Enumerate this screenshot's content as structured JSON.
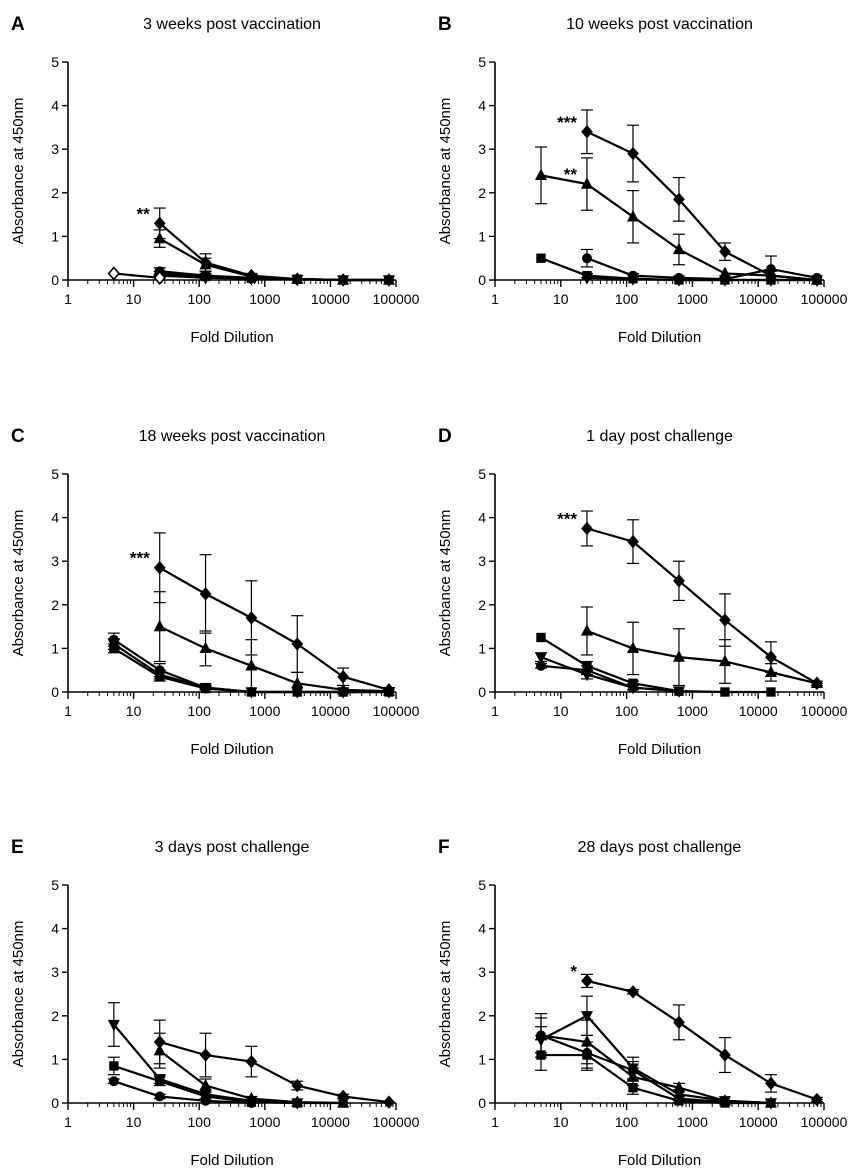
{
  "chart_data": [
    {
      "type": "line",
      "panel": "A",
      "title": "3 weeks post vaccination",
      "xlabel": "Fold Dilution",
      "ylabel": "Absorbance at 450nm",
      "x_scale": "log",
      "xlim": [
        1,
        100000
      ],
      "ylim": [
        0,
        5
      ],
      "x_ticks": [
        "1",
        "10",
        "100",
        "1000",
        "10000",
        "100000"
      ],
      "y_ticks": [
        "0",
        "1",
        "2",
        "3",
        "4",
        "5"
      ],
      "grid": false,
      "series": [
        {
          "marker": "diamond",
          "x": [
            25,
            125,
            625,
            3125,
            15625,
            78125
          ],
          "y": [
            1.3,
            0.4,
            0.1,
            0.02,
            0.0,
            0.0
          ],
          "err": [
            0.35,
            0.2,
            0.05,
            0,
            0,
            0
          ]
        },
        {
          "marker": "triangle-up",
          "x": [
            25,
            125,
            625,
            3125,
            15625,
            78125
          ],
          "y": [
            0.95,
            0.35,
            0.08,
            0.02,
            0.0,
            0.0
          ],
          "err": [
            0.2,
            0.15,
            0.05,
            0,
            0,
            0
          ]
        },
        {
          "marker": "circle",
          "x": [
            25,
            125,
            625,
            3125,
            15625,
            78125
          ],
          "y": [
            0.2,
            0.1,
            0.05,
            0.02,
            0.0,
            0.0
          ],
          "err": [
            0.08,
            0.05,
            0,
            0,
            0,
            0
          ]
        },
        {
          "marker": "square",
          "x": [
            25,
            125,
            625,
            3125,
            15625,
            78125
          ],
          "y": [
            0.15,
            0.08,
            0.04,
            0.02,
            0.0,
            0.0
          ],
          "err": [
            0.05,
            0.03,
            0,
            0,
            0,
            0
          ]
        },
        {
          "marker": "triangle-down",
          "x": [
            25,
            125,
            625,
            3125,
            15625,
            78125
          ],
          "y": [
            0.1,
            0.05,
            0.03,
            0.01,
            0.0,
            0.0
          ],
          "err": [
            0.04,
            0.02,
            0,
            0,
            0,
            0
          ]
        },
        {
          "marker": "diamond-open",
          "x": [
            5,
            25
          ],
          "y": [
            0.15,
            0.05
          ],
          "err": [
            0,
            0
          ]
        }
      ],
      "annotations": [
        {
          "text": "**",
          "x": 25,
          "y": 1.3
        }
      ]
    },
    {
      "type": "line",
      "panel": "B",
      "title": "10 weeks post vaccination",
      "xlabel": "Fold Dilution",
      "ylabel": "Absorbance at 450nm",
      "x_scale": "log",
      "xlim": [
        1,
        100000
      ],
      "ylim": [
        0,
        5
      ],
      "x_ticks": [
        "1",
        "10",
        "100",
        "1000",
        "10000",
        "100000"
      ],
      "y_ticks": [
        "0",
        "1",
        "2",
        "3",
        "4",
        "5"
      ],
      "grid": false,
      "series": [
        {
          "marker": "diamond",
          "x": [
            25,
            125,
            625,
            3125,
            15625,
            78125
          ],
          "y": [
            3.4,
            2.9,
            1.85,
            0.65,
            0.1,
            0.0
          ],
          "err": [
            0.5,
            0.65,
            0.5,
            0.2,
            0.1,
            0
          ]
        },
        {
          "marker": "triangle-up",
          "x": [
            5,
            25,
            125,
            625,
            3125,
            15625,
            78125
          ],
          "y": [
            2.4,
            2.2,
            1.45,
            0.7,
            0.15,
            0.1,
            0.0
          ],
          "err": [
            0.65,
            0.6,
            0.6,
            0.35,
            0,
            0,
            0
          ]
        },
        {
          "marker": "circle",
          "x": [
            25,
            125,
            625,
            3125,
            15625,
            78125
          ],
          "y": [
            0.5,
            0.1,
            0.05,
            0.02,
            0.25,
            0.05
          ],
          "err": [
            0.2,
            0.05,
            0,
            0,
            0.3,
            0
          ]
        },
        {
          "marker": "square",
          "x": [
            5,
            25,
            125,
            625,
            3125,
            15625,
            78125
          ],
          "y": [
            0.5,
            0.1,
            0.03,
            0.0,
            0.0,
            0.0,
            0.0
          ],
          "err": [
            0,
            0.05,
            0,
            0,
            0,
            0,
            0
          ]
        },
        {
          "marker": "triangle-down",
          "x": [
            25,
            125,
            625,
            3125,
            15625,
            78125
          ],
          "y": [
            0.05,
            0.02,
            0.0,
            0.0,
            0.0,
            0.0
          ],
          "err": [
            0,
            0,
            0,
            0,
            0,
            0
          ]
        }
      ],
      "annotations": [
        {
          "text": "***",
          "x": 25,
          "y": 3.4
        },
        {
          "text": "**",
          "x": 25,
          "y": 2.2
        }
      ]
    },
    {
      "type": "line",
      "panel": "C",
      "title": "18 weeks post vaccination",
      "xlabel": "Fold Dilution",
      "ylabel": "Absorbance at 450nm",
      "x_scale": "log",
      "xlim": [
        1,
        100000
      ],
      "ylim": [
        0,
        5
      ],
      "x_ticks": [
        "1",
        "10",
        "100",
        "1000",
        "10000",
        "100000"
      ],
      "y_ticks": [
        "0",
        "1",
        "2",
        "3",
        "4",
        "5"
      ],
      "grid": false,
      "series": [
        {
          "marker": "diamond",
          "x": [
            25,
            125,
            625,
            3125,
            15625,
            78125
          ],
          "y": [
            2.85,
            2.25,
            1.7,
            1.1,
            0.35,
            0.05
          ],
          "err": [
            0.8,
            0.9,
            0.85,
            0.65,
            0.2,
            0.05
          ]
        },
        {
          "marker": "triangle-up",
          "x": [
            25,
            125,
            625,
            3125,
            15625,
            78125
          ],
          "y": [
            1.5,
            1.0,
            0.6,
            0.2,
            0.05,
            0.02
          ],
          "err": [
            0.8,
            0.4,
            0.6,
            0.25,
            0.1,
            0
          ]
        },
        {
          "marker": "circle",
          "x": [
            5,
            25,
            125,
            625,
            3125,
            15625,
            78125
          ],
          "y": [
            1.2,
            0.5,
            0.1,
            0.0,
            0.0,
            0.0,
            0.0
          ],
          "err": [
            0.15,
            0.15,
            0.05,
            0,
            0,
            0,
            0
          ]
        },
        {
          "marker": "square",
          "x": [
            5,
            25,
            125,
            625,
            3125,
            15625,
            78125
          ],
          "y": [
            1.0,
            0.35,
            0.08,
            0.0,
            0.0,
            0.0,
            0.0
          ],
          "err": [
            0.1,
            0.1,
            0.03,
            0,
            0,
            0,
            0
          ]
        },
        {
          "marker": "triangle-down",
          "x": [
            5,
            25,
            125,
            625,
            3125,
            15625,
            78125
          ],
          "y": [
            1.1,
            0.4,
            0.1,
            0.0,
            0.0,
            0.0,
            0.0
          ],
          "err": [
            0.12,
            0.1,
            0.03,
            0,
            0,
            0,
            0
          ]
        }
      ],
      "annotations": [
        {
          "text": "***",
          "x": 25,
          "y": 2.85
        }
      ]
    },
    {
      "type": "line",
      "panel": "D",
      "title": "1 day post challenge",
      "xlabel": "Fold Dilution",
      "ylabel": "Absorbance at 450nm",
      "x_scale": "log",
      "xlim": [
        1,
        100000
      ],
      "ylim": [
        0,
        5
      ],
      "x_ticks": [
        "1",
        "10",
        "100",
        "1000",
        "10000",
        "100000"
      ],
      "y_ticks": [
        "0",
        "1",
        "2",
        "3",
        "4",
        "5"
      ],
      "grid": false,
      "series": [
        {
          "marker": "diamond",
          "x": [
            25,
            125,
            625,
            3125,
            15625,
            78125
          ],
          "y": [
            3.75,
            3.45,
            2.55,
            1.65,
            0.8,
            0.2
          ],
          "err": [
            0.4,
            0.5,
            0.45,
            0.6,
            0.35,
            0.05
          ]
        },
        {
          "marker": "triangle-up",
          "x": [
            25,
            125,
            625,
            3125,
            15625,
            78125
          ],
          "y": [
            1.4,
            1.0,
            0.8,
            0.7,
            0.45,
            0.2
          ],
          "err": [
            0.55,
            0.6,
            0.65,
            0.5,
            0.2,
            0
          ]
        },
        {
          "marker": "square",
          "x": [
            5,
            25,
            125,
            625,
            3125,
            15625
          ],
          "y": [
            1.25,
            0.6,
            0.2,
            0.02,
            0.0,
            0.0
          ],
          "err": [
            0,
            0.1,
            0.05,
            0,
            0,
            0
          ]
        },
        {
          "marker": "triangle-down",
          "x": [
            5,
            25,
            125,
            625
          ],
          "y": [
            0.8,
            0.4,
            0.1,
            0.02
          ],
          "err": [
            0.1,
            0.1,
            0.05,
            0
          ]
        },
        {
          "marker": "circle",
          "x": [
            5,
            25,
            125,
            625
          ],
          "y": [
            0.6,
            0.5,
            0.1,
            0.02
          ],
          "err": [
            0.05,
            0.1,
            0.05,
            0
          ]
        }
      ],
      "annotations": [
        {
          "text": "***",
          "x": 25,
          "y": 3.75
        }
      ]
    },
    {
      "type": "line",
      "panel": "E",
      "title": "3 days post challenge",
      "xlabel": "Fold Dilution",
      "ylabel": "Absorbance at 450nm",
      "x_scale": "log",
      "xlim": [
        1,
        100000
      ],
      "ylim": [
        0,
        5
      ],
      "x_ticks": [
        "1",
        "10",
        "100",
        "1000",
        "10000",
        "100000"
      ],
      "y_ticks": [
        "0",
        "1",
        "2",
        "3",
        "4",
        "5"
      ],
      "grid": false,
      "series": [
        {
          "marker": "diamond",
          "x": [
            25,
            125,
            625,
            3125,
            15625,
            78125
          ],
          "y": [
            1.4,
            1.1,
            0.95,
            0.4,
            0.15,
            0.02
          ],
          "err": [
            0.5,
            0.5,
            0.35,
            0.1,
            0.05,
            0
          ]
        },
        {
          "marker": "triangle-down",
          "x": [
            5,
            25,
            125,
            625,
            3125
          ],
          "y": [
            1.8,
            0.55,
            0.2,
            0.05,
            0.0
          ],
          "err": [
            0.5,
            0.1,
            0.1,
            0,
            0
          ]
        },
        {
          "marker": "triangle-up",
          "x": [
            25,
            125,
            625,
            3125,
            15625
          ],
          "y": [
            1.2,
            0.4,
            0.1,
            0.02,
            0.0
          ],
          "err": [
            0.4,
            0.15,
            0.05,
            0,
            0
          ]
        },
        {
          "marker": "square",
          "x": [
            5,
            25,
            125,
            625,
            3125,
            15625
          ],
          "y": [
            0.85,
            0.5,
            0.15,
            0.02,
            0.0,
            0.0
          ],
          "err": [
            0.2,
            0.1,
            0.05,
            0,
            0,
            0
          ]
        },
        {
          "marker": "circle",
          "x": [
            5,
            25,
            125,
            625
          ],
          "y": [
            0.5,
            0.15,
            0.05,
            0.0
          ],
          "err": [
            0.05,
            0.05,
            0,
            0
          ]
        }
      ],
      "annotations": []
    },
    {
      "type": "line",
      "panel": "F",
      "title": "28 days post challenge",
      "xlabel": "Fold Dilution",
      "ylabel": "Absorbance at 450nm",
      "x_scale": "log",
      "xlim": [
        1,
        100000
      ],
      "ylim": [
        0,
        5
      ],
      "x_ticks": [
        "1",
        "10",
        "100",
        "1000",
        "10000",
        "100000"
      ],
      "y_ticks": [
        "0",
        "1",
        "2",
        "3",
        "4",
        "5"
      ],
      "grid": false,
      "series": [
        {
          "marker": "diamond",
          "x": [
            25,
            125,
            625,
            3125,
            15625,
            78125
          ],
          "y": [
            2.8,
            2.55,
            1.85,
            1.1,
            0.45,
            0.08
          ],
          "err": [
            0.15,
            0.05,
            0.4,
            0.4,
            0.2,
            0.05
          ]
        },
        {
          "marker": "triangle-down",
          "x": [
            5,
            25,
            125,
            625,
            3125,
            15625
          ],
          "y": [
            1.45,
            2.0,
            0.8,
            0.2,
            0.05,
            0.0
          ],
          "err": [
            0.3,
            0.45,
            0.25,
            0.1,
            0,
            0
          ]
        },
        {
          "marker": "triangle-up",
          "x": [
            5,
            25,
            125,
            625,
            3125,
            15625
          ],
          "y": [
            1.55,
            1.4,
            0.6,
            0.35,
            0.05,
            0.0
          ],
          "err": [
            0.5,
            0.5,
            0.2,
            0.1,
            0,
            0
          ]
        },
        {
          "marker": "circle",
          "x": [
            5,
            25,
            125,
            625,
            3125
          ],
          "y": [
            1.55,
            1.15,
            0.75,
            0.1,
            0.02
          ],
          "err": [
            0.4,
            0.4,
            0.2,
            0.05,
            0
          ]
        },
        {
          "marker": "square",
          "x": [
            5,
            25,
            125,
            625,
            3125,
            15625
          ],
          "y": [
            1.1,
            1.1,
            0.35,
            0.05,
            0.0,
            0.0
          ],
          "err": [
            0.35,
            0.3,
            0.15,
            0,
            0,
            0
          ]
        }
      ],
      "annotations": [
        {
          "text": "*",
          "x": 25,
          "y": 2.8
        }
      ]
    }
  ]
}
